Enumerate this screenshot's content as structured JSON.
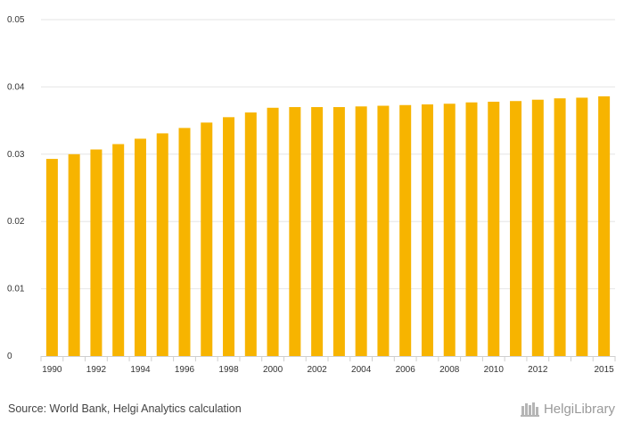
{
  "chart_data": {
    "type": "bar",
    "categories": [
      "1990",
      "1991",
      "1992",
      "1993",
      "1994",
      "1995",
      "1996",
      "1997",
      "1998",
      "1999",
      "2000",
      "2001",
      "2002",
      "2003",
      "2004",
      "2005",
      "2006",
      "2007",
      "2008",
      "2009",
      "2010",
      "2011",
      "2012",
      "2013",
      "2014",
      "2015"
    ],
    "values": [
      0.0293,
      0.03,
      0.0307,
      0.0315,
      0.0323,
      0.0331,
      0.0339,
      0.0347,
      0.0355,
      0.0362,
      0.0369,
      0.037,
      0.037,
      0.037,
      0.0371,
      0.0372,
      0.0373,
      0.0374,
      0.0375,
      0.0377,
      0.0378,
      0.0379,
      0.0381,
      0.0383,
      0.0384,
      0.0386
    ],
    "x_tick_labels": [
      "1990",
      "1992",
      "1994",
      "1996",
      "1998",
      "2000",
      "2002",
      "2004",
      "2006",
      "2008",
      "2010",
      "2012",
      "2015"
    ],
    "y_ticks": [
      "0",
      "0.01",
      "0.02",
      "0.03",
      "0.04",
      "0.05"
    ],
    "ylim": [
      0,
      0.05
    ],
    "grid": true,
    "bar_color": "#f7b400",
    "grid_color": "#e6e6e6"
  },
  "footer": {
    "source": "Source: World Bank, Helgi Analytics calculation",
    "brand": "HelgiLibrary"
  }
}
